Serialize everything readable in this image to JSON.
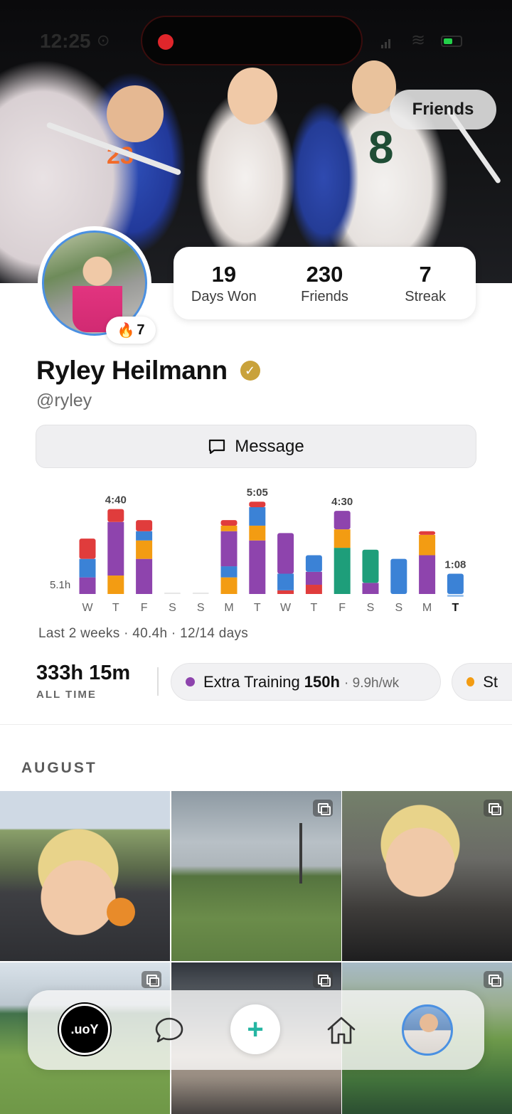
{
  "status_bar": {
    "time": "12:25"
  },
  "header": {
    "friends_label": "Friends"
  },
  "stats": [
    {
      "value": "19",
      "label": "Days Won"
    },
    {
      "value": "230",
      "label": "Friends"
    },
    {
      "value": "7",
      "label": "Streak"
    }
  ],
  "profile": {
    "streak_badge": "7",
    "name": "Ryley Heilmann",
    "handle": "@ryley",
    "message_label": "Message"
  },
  "colors": {
    "purple": "#8e44ad",
    "orange": "#f39c12",
    "blue": "#3b82d6",
    "red": "#e03c3c",
    "green": "#1e9e7a",
    "yellow": "#f5c518",
    "verified": "#c9a23b",
    "plus": "#25b5a2"
  },
  "chart_data": {
    "type": "bar",
    "stacked": true,
    "categories": [
      "W",
      "T",
      "F",
      "S",
      "S",
      "M",
      "T",
      "W",
      "T",
      "F",
      "S",
      "S",
      "M",
      "T"
    ],
    "highlight_index": 13,
    "ref_label": "5.1h",
    "ref_value": 5.1,
    "ylim": [
      0,
      5.2
    ],
    "value_labels": [
      "",
      "4:40",
      "",
      "",
      "",
      "",
      "5:05",
      "",
      "",
      "4:30",
      "",
      "",
      "",
      "1:08"
    ],
    "bars": [
      [
        [
          "purple",
          0.9
        ],
        [
          "blue",
          1.0
        ],
        [
          "red",
          1.1
        ]
      ],
      [
        [
          "orange",
          1.0
        ],
        [
          "purple",
          2.9
        ],
        [
          "red",
          0.7
        ]
      ],
      [
        [
          "purple",
          1.9
        ],
        [
          "orange",
          1.0
        ],
        [
          "blue",
          0.5
        ],
        [
          "red",
          0.6
        ]
      ],
      [],
      [],
      [
        [
          "orange",
          0.9
        ],
        [
          "blue",
          0.6
        ],
        [
          "purple",
          1.9
        ],
        [
          "orange",
          0.3
        ],
        [
          "red",
          0.3
        ]
      ],
      [
        [
          "purple",
          2.9
        ],
        [
          "orange",
          0.8
        ],
        [
          "blue",
          1.0
        ],
        [
          "red",
          0.3
        ]
      ],
      [
        [
          "red",
          0.2
        ],
        [
          "blue",
          0.9
        ],
        [
          "purple",
          2.2
        ]
      ],
      [
        [
          "red",
          0.5
        ],
        [
          "purple",
          0.7
        ],
        [
          "blue",
          0.9
        ]
      ],
      [
        [
          "green",
          2.5
        ],
        [
          "orange",
          1.0
        ],
        [
          "purple",
          1.0
        ]
      ],
      [
        [
          "purple",
          0.6
        ],
        [
          "green",
          1.8
        ]
      ],
      [
        [
          "blue",
          1.9
        ]
      ],
      [
        [
          "purple",
          2.1
        ],
        [
          "orange",
          1.1
        ],
        [
          "red",
          0.2
        ]
      ],
      [
        [
          "blue",
          1.1
        ]
      ]
    ]
  },
  "summary": {
    "period_text": "Last 2 weeks · 40.4h · 12/14 days",
    "total_value": "333h 15m",
    "total_label": "ALL TIME"
  },
  "categories": [
    {
      "name": "Extra Training",
      "hours": "150h",
      "rate": "· 9.9h/wk",
      "color": "#8e44ad"
    },
    {
      "name": "St",
      "hours": "",
      "rate": "",
      "color": "#f39c12"
    }
  ],
  "feed": {
    "month": "AUGUST"
  },
  "nav": {
    "joy_label": ".uoY"
  }
}
